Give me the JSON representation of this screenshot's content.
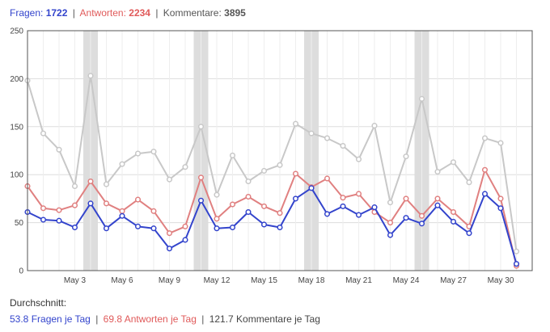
{
  "header": {
    "questions_label": "Fragen:",
    "questions_total": "1722",
    "answers_label": "Antworten:",
    "answers_total": "2234",
    "comments_label": "Kommentare:",
    "comments_total": "3895",
    "separator": "|"
  },
  "averages": {
    "title": "Durchschnitt:",
    "questions_text": "53.8 Fragen je Tag",
    "answers_text": "69.8 Antworten je Tag",
    "comments_text": "121.7 Kommentare je Tag",
    "separator": "|"
  },
  "colors": {
    "questions": "#3344cc",
    "answers": "#e08080",
    "comments": "#c8c8c8",
    "weekend_band": "#dddddd",
    "grid": "#dddddd"
  },
  "chart_data": {
    "type": "line",
    "x": [
      "Apr 30",
      "May 1",
      "May 2",
      "May 3",
      "May 4",
      "May 5",
      "May 6",
      "May 7",
      "May 8",
      "May 9",
      "May 10",
      "May 11",
      "May 12",
      "May 13",
      "May 14",
      "May 15",
      "May 16",
      "May 17",
      "May 18",
      "May 19",
      "May 20",
      "May 21",
      "May 22",
      "May 23",
      "May 24",
      "May 25",
      "May 26",
      "May 27",
      "May 28",
      "May 29",
      "May 30",
      "May 31",
      "Jun 1"
    ],
    "x_tick_labels": [
      "May 3",
      "May 6",
      "May 9",
      "May 12",
      "May 15",
      "May 18",
      "May 21",
      "May 24",
      "May 27",
      "May 30"
    ],
    "x_tick_indices": [
      3,
      6,
      9,
      12,
      15,
      18,
      21,
      24,
      27,
      30
    ],
    "ylim": [
      0,
      250
    ],
    "y_ticks": [
      0,
      50,
      100,
      150,
      200,
      250
    ],
    "grid": true,
    "highlighted_days": [
      4,
      11,
      18,
      25
    ],
    "series": [
      {
        "key": "comments",
        "values": [
          198,
          143,
          126,
          88,
          203,
          90,
          111,
          122,
          124,
          95,
          108,
          150,
          79,
          120,
          93,
          104,
          110,
          153,
          143,
          138,
          130,
          116,
          151,
          71,
          119,
          179,
          103,
          113,
          92,
          138,
          133,
          20,
          null
        ]
      },
      {
        "key": "answers",
        "values": [
          88,
          65,
          63,
          68,
          93,
          70,
          62,
          74,
          62,
          39,
          46,
          97,
          54,
          69,
          77,
          67,
          60,
          101,
          87,
          96,
          76,
          80,
          61,
          50,
          75,
          57,
          75,
          61,
          46,
          105,
          75,
          5,
          null
        ]
      },
      {
        "key": "questions",
        "values": [
          61,
          53,
          52,
          45,
          70,
          44,
          57,
          46,
          44,
          23,
          32,
          73,
          44,
          45,
          61,
          48,
          45,
          75,
          86,
          59,
          67,
          58,
          66,
          37,
          55,
          49,
          68,
          51,
          39,
          80,
          65,
          7,
          null
        ]
      }
    ]
  }
}
